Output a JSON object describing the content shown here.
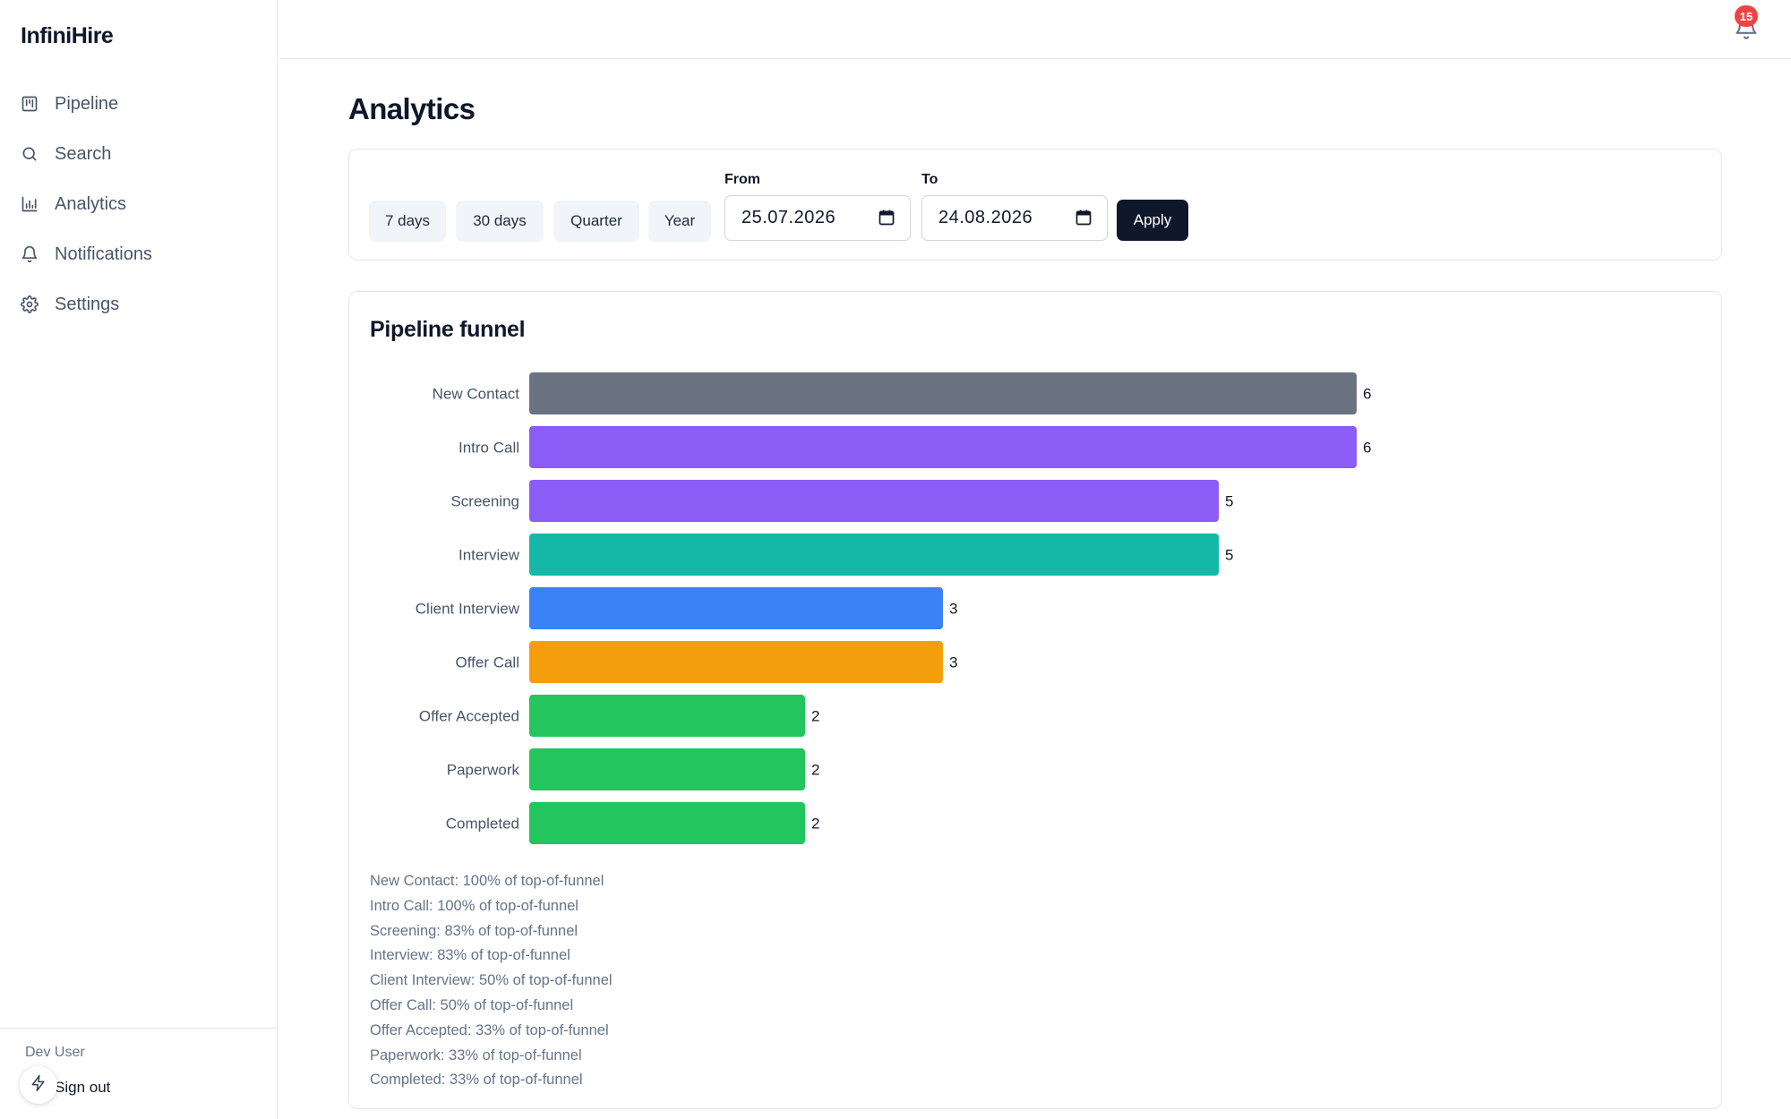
{
  "app": {
    "brand": "InfiniHire"
  },
  "sidebar": {
    "items": [
      {
        "label": "Pipeline",
        "icon": "kanban-icon"
      },
      {
        "label": "Search",
        "icon": "search-icon"
      },
      {
        "label": "Analytics",
        "icon": "bar-chart-icon"
      },
      {
        "label": "Notifications",
        "icon": "bell-icon"
      },
      {
        "label": "Settings",
        "icon": "gear-icon"
      }
    ],
    "user_name": "Dev User",
    "sign_out": "Sign out"
  },
  "topbar": {
    "notification_count": "15"
  },
  "page": {
    "title": "Analytics"
  },
  "filters": {
    "presets": [
      "7 days",
      "30 days",
      "Quarter",
      "Year"
    ],
    "from_label": "From",
    "from_value": "25.07.2026",
    "to_label": "To",
    "to_value": "24.08.2026",
    "apply_label": "Apply"
  },
  "funnel": {
    "title": "Pipeline funnel",
    "summary": [
      "New Contact: 100% of top-of-funnel",
      "Intro Call: 100% of top-of-funnel",
      "Screening: 83% of top-of-funnel",
      "Interview: 83% of top-of-funnel",
      "Client Interview: 50% of top-of-funnel",
      "Offer Call: 50% of top-of-funnel",
      "Offer Accepted: 33% of top-of-funnel",
      "Paperwork: 33% of top-of-funnel",
      "Completed: 33% of top-of-funnel"
    ]
  },
  "chart_data": {
    "type": "bar",
    "orientation": "horizontal",
    "title": "Pipeline funnel",
    "categories": [
      "New Contact",
      "Intro Call",
      "Screening",
      "Interview",
      "Client Interview",
      "Offer Call",
      "Offer Accepted",
      "Paperwork",
      "Completed"
    ],
    "values": [
      6,
      6,
      5,
      5,
      3,
      3,
      2,
      2,
      2
    ],
    "colors": [
      "#6b7280",
      "#8b5cf6",
      "#8b5cf6",
      "#14b8a6",
      "#3b82f6",
      "#f59e0b",
      "#22c55e",
      "#22c55e",
      "#22c55e"
    ],
    "data_labels": true,
    "grid": false,
    "legend": "none"
  }
}
